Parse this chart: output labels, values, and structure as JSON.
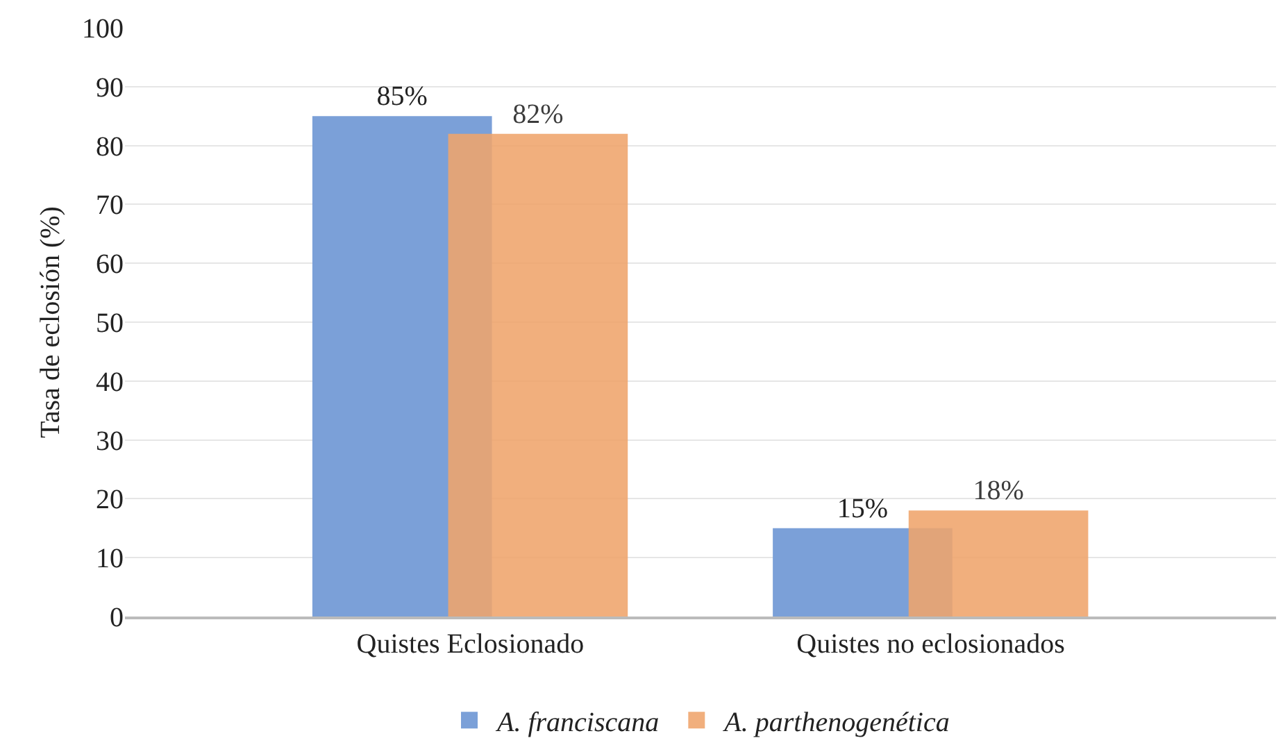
{
  "chart_data": {
    "type": "bar",
    "ylabel": "Tasa de eclosión (%)",
    "categories": [
      "Quistes Eclosionado",
      "Quistes no eclosionados"
    ],
    "series": [
      {
        "name": "A. franciscana",
        "color": "#7ba0d8",
        "values": [
          85,
          15
        ],
        "value_labels": [
          "85%",
          "15%"
        ]
      },
      {
        "name": "A. parthenogenética",
        "color": "#f0a46c",
        "values": [
          82,
          18
        ],
        "value_labels": [
          "82%",
          "18%"
        ]
      }
    ],
    "ylim": [
      0,
      100
    ],
    "yticks": [
      0,
      10,
      20,
      30,
      40,
      50,
      60,
      70,
      80,
      90,
      100
    ],
    "grid": "y",
    "legend": "bottom"
  }
}
